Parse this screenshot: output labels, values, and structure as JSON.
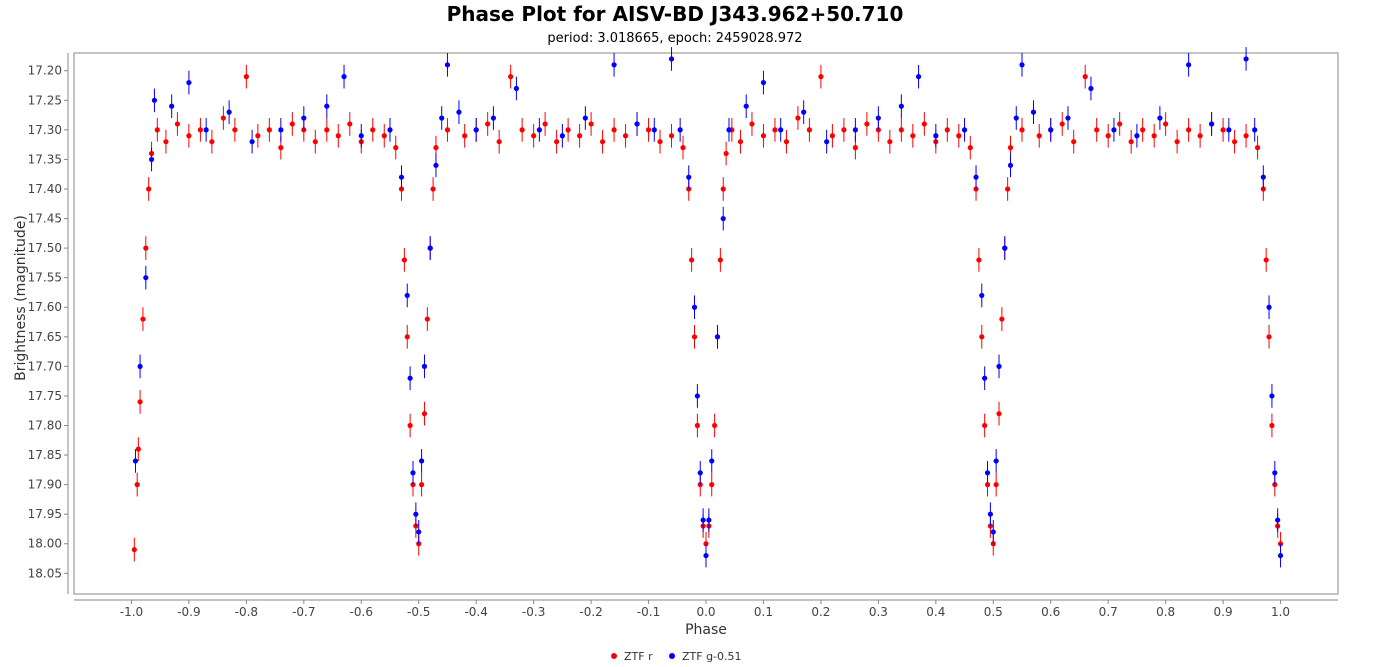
{
  "chart_data": {
    "type": "scatter",
    "title": "Phase Plot for AISV-BD J343.962+50.710",
    "subtitle": "period: 3.018665, epoch: 2459028.972",
    "xlabel": "Phase",
    "ylabel": "Brightness (magnitude)",
    "xlim": [
      -1.1,
      1.1
    ],
    "ylim": [
      18.085,
      17.17
    ],
    "y_inverted": true,
    "xticks": [
      -1.0,
      -0.9,
      -0.8,
      -0.7,
      -0.6,
      -0.5,
      -0.4,
      -0.3,
      -0.2,
      -0.1,
      0.0,
      0.1,
      0.2,
      0.3,
      0.4,
      0.5,
      0.6,
      0.7,
      0.8,
      0.9,
      1.0
    ],
    "xtick_labels": [
      "-1.0",
      "-0.9",
      "-0.8",
      "-0.7",
      "-0.6",
      "-0.5",
      "-0.4",
      "-0.3",
      "-0.2",
      "-0.1",
      "0.0",
      "0.1",
      "0.2",
      "0.3",
      "0.4",
      "0.5",
      "0.6",
      "0.7",
      "0.8",
      "0.9",
      "1.0"
    ],
    "yticks": [
      17.2,
      17.25,
      17.3,
      17.35,
      17.4,
      17.45,
      17.5,
      17.55,
      17.6,
      17.65,
      17.7,
      17.75,
      17.8,
      17.85,
      17.9,
      17.95,
      18.0,
      18.05
    ],
    "ytick_labels": [
      "17.20",
      "17.25",
      "17.30",
      "17.35",
      "17.40",
      "17.45",
      "17.50",
      "17.55",
      "17.60",
      "17.65",
      "17.70",
      "17.75",
      "17.80",
      "17.85",
      "17.90",
      "17.95",
      "18.00",
      "18.05"
    ],
    "grid": false,
    "legend_position": "bottom-center",
    "series": [
      {
        "name": "ZTF r",
        "color": "#ff0000",
        "marker": "circle",
        "error_bars": true,
        "points": [
          [
            -0.995,
            18.01
          ],
          [
            -0.99,
            17.9
          ],
          [
            -0.988,
            17.84
          ],
          [
            -0.985,
            17.76
          ],
          [
            -0.98,
            17.62
          ],
          [
            -0.975,
            17.5
          ],
          [
            -0.97,
            17.4
          ],
          [
            -0.965,
            17.34
          ],
          [
            -0.955,
            17.3
          ],
          [
            -0.94,
            17.32
          ],
          [
            -0.92,
            17.29
          ],
          [
            -0.9,
            17.31
          ],
          [
            -0.88,
            17.3
          ],
          [
            -0.86,
            17.32
          ],
          [
            -0.84,
            17.28
          ],
          [
            -0.82,
            17.3
          ],
          [
            -0.8,
            17.21
          ],
          [
            -0.78,
            17.31
          ],
          [
            -0.76,
            17.3
          ],
          [
            -0.74,
            17.33
          ],
          [
            -0.72,
            17.29
          ],
          [
            -0.7,
            17.3
          ],
          [
            -0.68,
            17.32
          ],
          [
            -0.66,
            17.3
          ],
          [
            -0.64,
            17.31
          ],
          [
            -0.62,
            17.29
          ],
          [
            -0.6,
            17.32
          ],
          [
            -0.58,
            17.3
          ],
          [
            -0.56,
            17.31
          ],
          [
            -0.54,
            17.33
          ],
          [
            -0.53,
            17.4
          ],
          [
            -0.525,
            17.52
          ],
          [
            -0.52,
            17.65
          ],
          [
            -0.515,
            17.8
          ],
          [
            -0.51,
            17.9
          ],
          [
            -0.505,
            17.97
          ],
          [
            -0.5,
            18.0
          ],
          [
            -0.495,
            17.9
          ],
          [
            -0.49,
            17.78
          ],
          [
            -0.485,
            17.62
          ],
          [
            -0.48,
            17.5
          ],
          [
            -0.475,
            17.4
          ],
          [
            -0.47,
            17.33
          ],
          [
            -0.45,
            17.3
          ],
          [
            -0.42,
            17.31
          ],
          [
            -0.4,
            17.3
          ],
          [
            -0.38,
            17.29
          ],
          [
            -0.36,
            17.32
          ],
          [
            -0.34,
            17.21
          ],
          [
            -0.32,
            17.3
          ],
          [
            -0.3,
            17.31
          ],
          [
            -0.28,
            17.29
          ],
          [
            -0.26,
            17.32
          ],
          [
            -0.24,
            17.3
          ],
          [
            -0.22,
            17.31
          ],
          [
            -0.2,
            17.29
          ],
          [
            -0.18,
            17.32
          ],
          [
            -0.16,
            17.3
          ],
          [
            -0.14,
            17.31
          ],
          [
            -0.12,
            17.29
          ],
          [
            -0.1,
            17.3
          ],
          [
            -0.08,
            17.32
          ],
          [
            -0.06,
            17.31
          ],
          [
            -0.04,
            17.33
          ],
          [
            -0.03,
            17.4
          ],
          [
            -0.025,
            17.52
          ],
          [
            -0.02,
            17.65
          ],
          [
            -0.015,
            17.8
          ],
          [
            -0.01,
            17.9
          ],
          [
            -0.005,
            17.97
          ],
          [
            0.0,
            18.0
          ],
          [
            0.005,
            17.97
          ],
          [
            0.01,
            17.9
          ],
          [
            0.015,
            17.8
          ],
          [
            0.02,
            17.65
          ],
          [
            0.025,
            17.52
          ],
          [
            0.03,
            17.4
          ],
          [
            0.035,
            17.34
          ],
          [
            0.045,
            17.3
          ],
          [
            0.06,
            17.32
          ],
          [
            0.08,
            17.29
          ],
          [
            0.1,
            17.31
          ],
          [
            0.12,
            17.3
          ],
          [
            0.14,
            17.32
          ],
          [
            0.16,
            17.28
          ],
          [
            0.18,
            17.3
          ],
          [
            0.2,
            17.21
          ],
          [
            0.22,
            17.31
          ],
          [
            0.24,
            17.3
          ],
          [
            0.26,
            17.33
          ],
          [
            0.28,
            17.29
          ],
          [
            0.3,
            17.3
          ],
          [
            0.32,
            17.32
          ],
          [
            0.34,
            17.3
          ],
          [
            0.36,
            17.31
          ],
          [
            0.38,
            17.29
          ],
          [
            0.4,
            17.32
          ],
          [
            0.42,
            17.3
          ],
          [
            0.44,
            17.31
          ],
          [
            0.46,
            17.33
          ],
          [
            0.47,
            17.4
          ],
          [
            0.475,
            17.52
          ],
          [
            0.48,
            17.65
          ],
          [
            0.485,
            17.8
          ],
          [
            0.49,
            17.9
          ],
          [
            0.495,
            17.97
          ],
          [
            0.5,
            18.0
          ],
          [
            0.505,
            17.9
          ],
          [
            0.51,
            17.78
          ],
          [
            0.515,
            17.62
          ],
          [
            0.52,
            17.5
          ],
          [
            0.525,
            17.4
          ],
          [
            0.53,
            17.33
          ],
          [
            0.55,
            17.3
          ],
          [
            0.58,
            17.31
          ],
          [
            0.6,
            17.3
          ],
          [
            0.62,
            17.29
          ],
          [
            0.64,
            17.32
          ],
          [
            0.66,
            17.21
          ],
          [
            0.68,
            17.3
          ],
          [
            0.7,
            17.31
          ],
          [
            0.72,
            17.29
          ],
          [
            0.74,
            17.32
          ],
          [
            0.76,
            17.3
          ],
          [
            0.78,
            17.31
          ],
          [
            0.8,
            17.29
          ],
          [
            0.82,
            17.32
          ],
          [
            0.84,
            17.3
          ],
          [
            0.86,
            17.31
          ],
          [
            0.88,
            17.29
          ],
          [
            0.9,
            17.3
          ],
          [
            0.92,
            17.32
          ],
          [
            0.94,
            17.31
          ],
          [
            0.96,
            17.33
          ],
          [
            0.97,
            17.4
          ],
          [
            0.975,
            17.52
          ],
          [
            0.98,
            17.65
          ],
          [
            0.985,
            17.8
          ],
          [
            0.99,
            17.9
          ],
          [
            0.995,
            17.97
          ],
          [
            1.0,
            18.0
          ]
        ]
      },
      {
        "name": "ZTF g-0.51",
        "color": "#0000ff",
        "marker": "circle",
        "error_bars": true,
        "points": [
          [
            -0.993,
            17.86
          ],
          [
            -0.985,
            17.7
          ],
          [
            -0.975,
            17.55
          ],
          [
            -0.965,
            17.35
          ],
          [
            -0.96,
            17.25
          ],
          [
            -0.93,
            17.26
          ],
          [
            -0.9,
            17.22
          ],
          [
            -0.87,
            17.3
          ],
          [
            -0.83,
            17.27
          ],
          [
            -0.79,
            17.32
          ],
          [
            -0.74,
            17.3
          ],
          [
            -0.7,
            17.28
          ],
          [
            -0.66,
            17.26
          ],
          [
            -0.63,
            17.21
          ],
          [
            -0.6,
            17.31
          ],
          [
            -0.55,
            17.3
          ],
          [
            -0.53,
            17.38
          ],
          [
            -0.52,
            17.58
          ],
          [
            -0.515,
            17.72
          ],
          [
            -0.51,
            17.88
          ],
          [
            -0.505,
            17.95
          ],
          [
            -0.5,
            17.98
          ],
          [
            -0.495,
            17.86
          ],
          [
            -0.49,
            17.7
          ],
          [
            -0.48,
            17.5
          ],
          [
            -0.47,
            17.36
          ],
          [
            -0.46,
            17.28
          ],
          [
            -0.45,
            17.19
          ],
          [
            -0.43,
            17.27
          ],
          [
            -0.4,
            17.3
          ],
          [
            -0.37,
            17.28
          ],
          [
            -0.33,
            17.23
          ],
          [
            -0.29,
            17.3
          ],
          [
            -0.25,
            17.31
          ],
          [
            -0.21,
            17.28
          ],
          [
            -0.16,
            17.19
          ],
          [
            -0.12,
            17.29
          ],
          [
            -0.09,
            17.3
          ],
          [
            -0.06,
            17.18
          ],
          [
            -0.045,
            17.3
          ],
          [
            -0.03,
            17.38
          ],
          [
            -0.02,
            17.6
          ],
          [
            -0.015,
            17.75
          ],
          [
            -0.01,
            17.88
          ],
          [
            -0.005,
            17.96
          ],
          [
            0.0,
            18.02
          ],
          [
            0.005,
            17.96
          ],
          [
            0.01,
            17.86
          ],
          [
            0.02,
            17.65
          ],
          [
            0.03,
            17.45
          ],
          [
            0.04,
            17.3
          ],
          [
            0.07,
            17.26
          ],
          [
            0.1,
            17.22
          ],
          [
            0.13,
            17.3
          ],
          [
            0.17,
            17.27
          ],
          [
            0.21,
            17.32
          ],
          [
            0.26,
            17.3
          ],
          [
            0.3,
            17.28
          ],
          [
            0.34,
            17.26
          ],
          [
            0.37,
            17.21
          ],
          [
            0.4,
            17.31
          ],
          [
            0.45,
            17.3
          ],
          [
            0.47,
            17.38
          ],
          [
            0.48,
            17.58
          ],
          [
            0.485,
            17.72
          ],
          [
            0.49,
            17.88
          ],
          [
            0.495,
            17.95
          ],
          [
            0.5,
            17.98
          ],
          [
            0.505,
            17.86
          ],
          [
            0.51,
            17.7
          ],
          [
            0.52,
            17.5
          ],
          [
            0.53,
            17.36
          ],
          [
            0.54,
            17.28
          ],
          [
            0.55,
            17.19
          ],
          [
            0.57,
            17.27
          ],
          [
            0.6,
            17.3
          ],
          [
            0.63,
            17.28
          ],
          [
            0.67,
            17.23
          ],
          [
            0.71,
            17.3
          ],
          [
            0.75,
            17.31
          ],
          [
            0.79,
            17.28
          ],
          [
            0.84,
            17.19
          ],
          [
            0.88,
            17.29
          ],
          [
            0.91,
            17.3
          ],
          [
            0.94,
            17.18
          ],
          [
            0.955,
            17.3
          ],
          [
            0.97,
            17.38
          ],
          [
            0.98,
            17.6
          ],
          [
            0.985,
            17.75
          ],
          [
            0.99,
            17.88
          ],
          [
            0.995,
            17.96
          ],
          [
            1.0,
            18.02
          ]
        ]
      }
    ]
  }
}
